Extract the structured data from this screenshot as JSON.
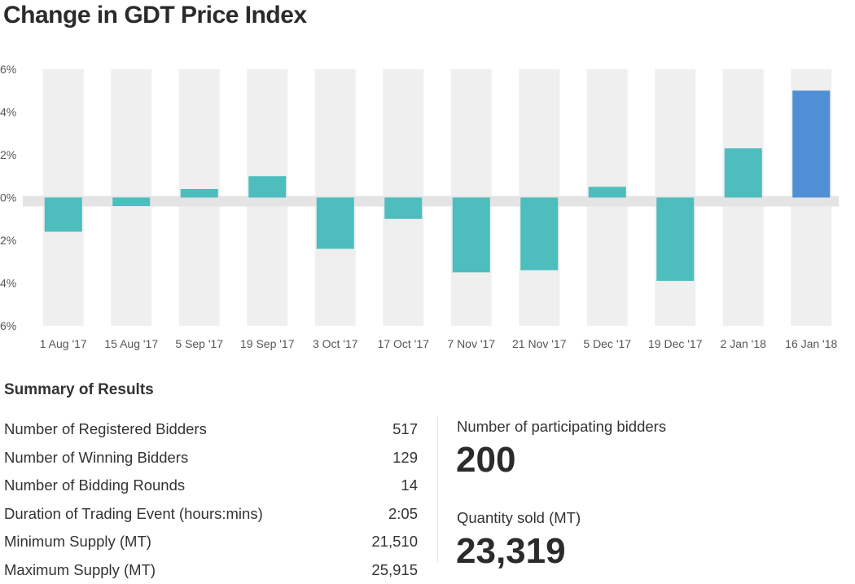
{
  "title": "Change in GDT Price Index",
  "chart_data": {
    "type": "bar",
    "title": "Change in GDT Price Index",
    "categories": [
      "1 Aug '17",
      "15 Aug '17",
      "5 Sep '17",
      "19 Sep '17",
      "3 Oct '17",
      "17 Oct '17",
      "7 Nov '17",
      "21 Nov '17",
      "5 Dec '17",
      "19 Dec '17",
      "2 Jan '18",
      "16 Jan '18"
    ],
    "values": [
      -1.6,
      -0.4,
      0.4,
      1.0,
      -2.4,
      -1.0,
      -3.5,
      -3.4,
      0.5,
      -3.9,
      2.3,
      5.0
    ],
    "ylim": [
      -6,
      6
    ],
    "yticks": [
      6,
      4,
      2,
      0,
      -2,
      -4,
      -6
    ],
    "ytick_labels": [
      "6%",
      "4%",
      "2%",
      "0%",
      "2%",
      "4%",
      "6%"
    ],
    "xlabel": "",
    "ylabel": "",
    "grid": "alternating vertical bands",
    "colors": {
      "bar": "#4dbdbd",
      "highlight": "#4f8fd6",
      "band": "#efefef",
      "zero_line": "#e4e4e4",
      "tick_text": "#555555"
    },
    "highlight_index": 11
  },
  "summary": {
    "heading": "Summary of Results",
    "rows": [
      {
        "label": "Number of Registered Bidders",
        "value": "517"
      },
      {
        "label": "Number of Winning Bidders",
        "value": "129"
      },
      {
        "label": "Number of Bidding Rounds",
        "value": "14"
      },
      {
        "label": "Duration of Trading Event (hours:mins)",
        "value": "2:05"
      },
      {
        "label": "Minimum Supply (MT)",
        "value": "21,510"
      },
      {
        "label": "Maximum Supply (MT)",
        "value": "25,915"
      }
    ],
    "participating_label": "Number of participating bidders",
    "participating_value": "200",
    "quantity_label": "Quantity sold (MT)",
    "quantity_value": "23,319"
  }
}
